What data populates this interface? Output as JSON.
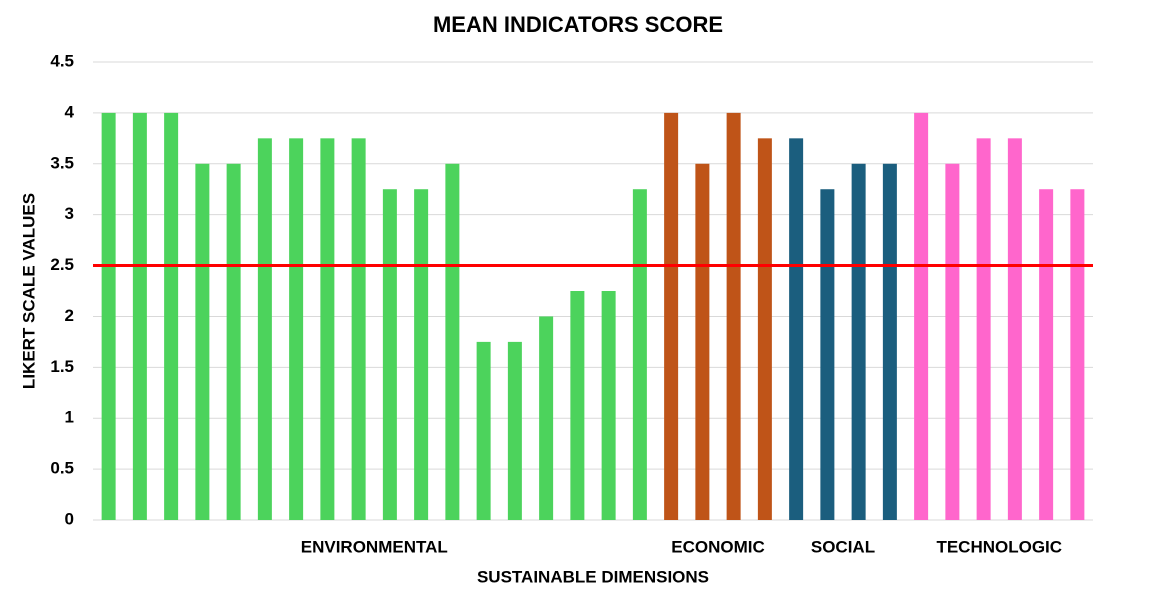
{
  "chart_data": {
    "type": "bar",
    "title": "MEAN INDICATORS SCORE",
    "x_label": "SUSTAINABLE DIMENSIONS",
    "y_label": "LIKERT SCALE VALUES",
    "series": [
      {
        "name": "ENVIRONMENTAL",
        "color": "#4cd35c",
        "values": [
          4,
          4,
          4,
          3.5,
          3.5,
          3.75,
          3.75,
          3.75,
          3.75,
          3.25,
          3.25,
          3.5,
          1.75,
          1.75,
          2,
          2.25,
          2.25,
          3.25
        ]
      },
      {
        "name": "ECONOMIC",
        "color": "#bf5418",
        "values": [
          4,
          3.5,
          4,
          3.75
        ]
      },
      {
        "name": "SOCIAL",
        "color": "#1b5e7e",
        "values": [
          3.75,
          3.25,
          3.5,
          3.5
        ]
      },
      {
        "name": "TECHNOLOGIC",
        "color": "#ff66cc",
        "values": [
          4,
          3.5,
          3.75,
          3.75,
          3.25,
          3.25
        ]
      }
    ],
    "reference_line": {
      "value": 2.5,
      "color": "#ff0000"
    },
    "ylim": [
      0,
      4.5
    ],
    "yticks": [
      0,
      0.5,
      1,
      1.5,
      2,
      2.5,
      3,
      3.5,
      4,
      4.5
    ],
    "grid": true
  }
}
